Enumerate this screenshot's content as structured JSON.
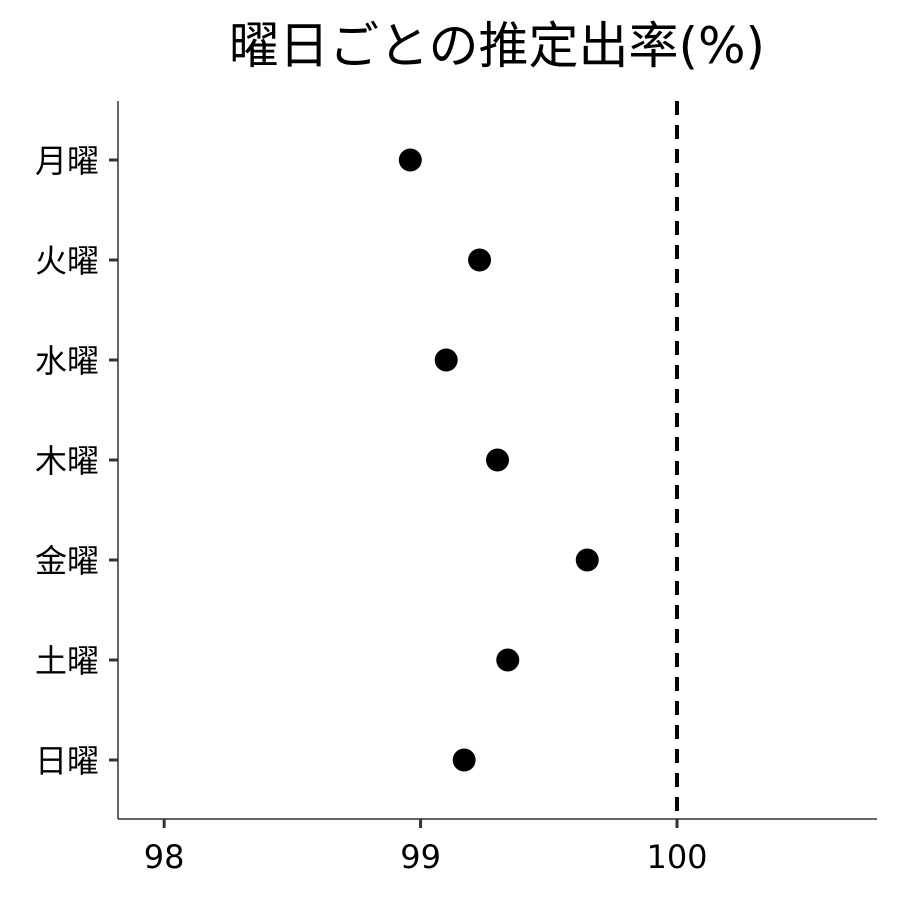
{
  "chart_data": {
    "type": "scatter",
    "title": "曜日ごとの推定出率(%)",
    "xlabel": "",
    "ylabel": "",
    "categories": [
      "月曜",
      "火曜",
      "水曜",
      "木曜",
      "金曜",
      "土曜",
      "日曜"
    ],
    "values": [
      98.96,
      99.23,
      99.1,
      99.3,
      99.65,
      99.34,
      99.17
    ],
    "xlim": [
      97.82,
      100.78
    ],
    "x_ticks": [
      98,
      99,
      100
    ],
    "x_tick_labels": [
      "98",
      "99",
      "100"
    ],
    "reference_line": {
      "x": 100,
      "style": "dashed"
    },
    "grid": false,
    "legend": "none",
    "colors": {
      "point": "#000000",
      "axis": "#333333",
      "reference": "#000000"
    }
  }
}
